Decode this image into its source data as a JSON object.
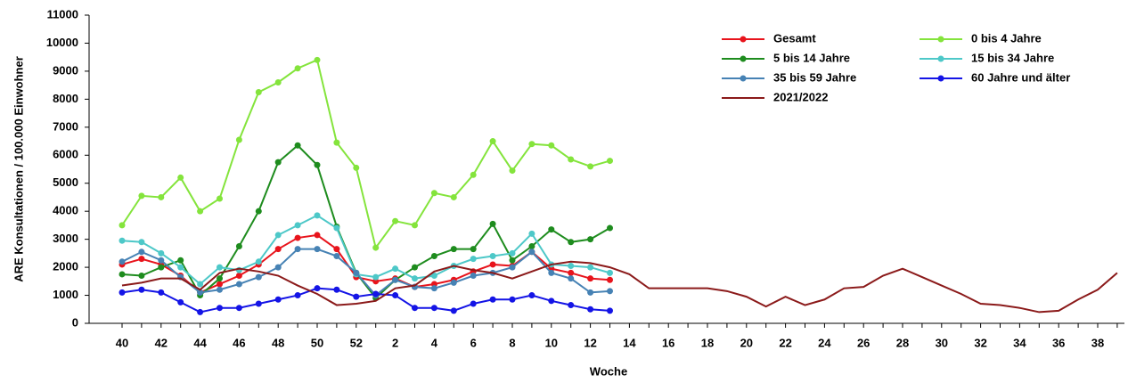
{
  "chart_data": {
    "type": "line",
    "xlabel": "Woche",
    "ylabel": "ARE Konsultationen / 100.000 Einwohner",
    "categories": [
      "40",
      null,
      "42",
      null,
      "44",
      null,
      "46",
      null,
      "48",
      null,
      "50",
      null,
      "52",
      null,
      "2",
      null,
      "4",
      null,
      "6",
      null,
      "8",
      null,
      "10",
      null,
      "12",
      null,
      "14",
      null,
      "16",
      null,
      "18",
      null,
      "20",
      null,
      "22",
      null,
      "24",
      null,
      "26",
      null,
      "28",
      null,
      "30",
      null,
      "32",
      null,
      "34",
      null,
      "36",
      null,
      "38",
      null
    ],
    "ylim": [
      0,
      11000
    ],
    "yticks": [
      0,
      1000,
      2000,
      3000,
      4000,
      5000,
      6000,
      7000,
      8000,
      9000,
      10000,
      11000
    ],
    "grid": false,
    "legend": "upper right",
    "series": [
      {
        "name": "Gesamt",
        "color": "#e8141c",
        "marker": true,
        "values": [
          2100,
          2300,
          2100,
          1700,
          1100,
          1400,
          1700,
          2100,
          2650,
          3050,
          3150,
          2650,
          1650,
          1500,
          1600,
          1300,
          1400,
          1550,
          1850,
          2100,
          2050,
          2550,
          1950,
          1800,
          1600,
          1550,
          null,
          null,
          null,
          null,
          null,
          null,
          null,
          null,
          null,
          null,
          null,
          null,
          null,
          null,
          null,
          null,
          null,
          null,
          null,
          null,
          null,
          null,
          null,
          null,
          null,
          null
        ]
      },
      {
        "name": "0 bis 4 Jahre",
        "color": "#84e43c",
        "marker": true,
        "values": [
          3500,
          4550,
          4500,
          5200,
          4000,
          4450,
          6550,
          8250,
          8600,
          9100,
          9400,
          6450,
          5550,
          2700,
          3650,
          3500,
          4650,
          4500,
          5300,
          6500,
          5450,
          6400,
          6350,
          5850,
          5600,
          5800,
          null,
          null,
          null,
          null,
          null,
          null,
          null,
          null,
          null,
          null,
          null,
          null,
          null,
          null,
          null,
          null,
          null,
          null,
          null,
          null,
          null,
          null,
          null,
          null,
          null,
          null
        ]
      },
      {
        "name": "5 bis 14 Jahre",
        "color": "#1e8c1e",
        "marker": true,
        "values": [
          1750,
          1700,
          2000,
          2250,
          1000,
          1600,
          2750,
          4000,
          5750,
          6350,
          5650,
          3450,
          1800,
          900,
          1550,
          2000,
          2400,
          2650,
          2650,
          3550,
          2250,
          2750,
          3350,
          2900,
          3000,
          3400,
          null,
          null,
          null,
          null,
          null,
          null,
          null,
          null,
          null,
          null,
          null,
          null,
          null,
          null,
          null,
          null,
          null,
          null,
          null,
          null,
          null,
          null,
          null,
          null,
          null,
          null
        ]
      },
      {
        "name": "15 bis 34 Jahre",
        "color": "#4dc8c8",
        "marker": true,
        "values": [
          2950,
          2900,
          2500,
          2000,
          1400,
          2000,
          1900,
          2200,
          3150,
          3500,
          3850,
          3400,
          1750,
          1650,
          1950,
          1600,
          1700,
          2050,
          2300,
          2400,
          2500,
          3200,
          2100,
          2050,
          2000,
          1800,
          null,
          null,
          null,
          null,
          null,
          null,
          null,
          null,
          null,
          null,
          null,
          null,
          null,
          null,
          null,
          null,
          null,
          null,
          null,
          null,
          null,
          null,
          null,
          null,
          null,
          null
        ]
      },
      {
        "name": "35 bis 59 Jahre",
        "color": "#4682b4",
        "marker": true,
        "values": [
          2200,
          2550,
          2250,
          1650,
          1100,
          1200,
          1400,
          1650,
          2000,
          2650,
          2650,
          2400,
          1800,
          1000,
          1550,
          1300,
          1250,
          1450,
          1700,
          1800,
          2000,
          2550,
          1800,
          1600,
          1100,
          1150,
          null,
          null,
          null,
          null,
          null,
          null,
          null,
          null,
          null,
          null,
          null,
          null,
          null,
          null,
          null,
          null,
          null,
          null,
          null,
          null,
          null,
          null,
          null,
          null,
          null,
          null
        ]
      },
      {
        "name": "60 Jahre und älter",
        "color": "#1414e6",
        "marker": true,
        "values": [
          1100,
          1200,
          1100,
          750,
          400,
          550,
          550,
          700,
          850,
          1000,
          1250,
          1200,
          950,
          1050,
          1000,
          550,
          550,
          450,
          700,
          850,
          850,
          1000,
          800,
          650,
          500,
          450,
          null,
          null,
          null,
          null,
          null,
          null,
          null,
          null,
          null,
          null,
          null,
          null,
          null,
          null,
          null,
          null,
          null,
          null,
          null,
          null,
          null,
          null,
          null,
          null,
          null,
          null
        ]
      },
      {
        "name": "2021/2022",
        "color": "#8b1a1a",
        "marker": false,
        "values": [
          1350,
          1450,
          1600,
          1600,
          1200,
          1800,
          1950,
          1850,
          1700,
          1350,
          1050,
          650,
          700,
          800,
          1250,
          1350,
          1850,
          2050,
          1900,
          1800,
          1600,
          1850,
          2100,
          2200,
          2150,
          2000,
          1750,
          1250,
          1250,
          1250,
          1250,
          1150,
          950,
          600,
          950,
          650,
          850,
          1250,
          1300,
          1700,
          1950,
          1650,
          1350,
          1050,
          700,
          650,
          550,
          400,
          450,
          850,
          1200,
          1800
        ]
      }
    ]
  }
}
